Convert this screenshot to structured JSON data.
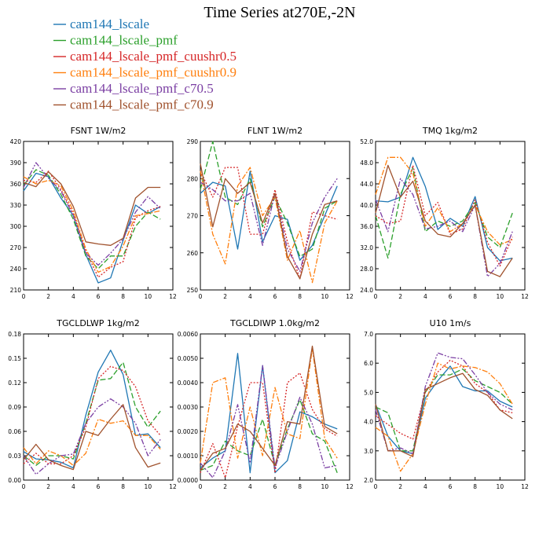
{
  "figure": {
    "title": "Time Series at270E,-2N"
  },
  "legend": [
    {
      "label": "cam144_lscale",
      "color": "#1f77b4",
      "dash": "solid"
    },
    {
      "label": "cam144_lscale_pmf",
      "color": "#2ca02c",
      "dash": "longdash"
    },
    {
      "label": "cam144_lscale_pmf_cuushr0.5",
      "color": "#d62728",
      "dash": "dotted"
    },
    {
      "label": "cam144_lscale_pmf_cuushr0.9",
      "color": "#ff7f0e",
      "dash": "dashdot"
    },
    {
      "label": "cam144_lscale_pmf_c70.5",
      "color": "#7b3fa3",
      "dash": "dashdotdot"
    },
    {
      "label": "cam144_lscale_pmf_c70.9",
      "color": "#a0522d",
      "dash": "solid"
    }
  ],
  "chart_data": [
    {
      "type": "line",
      "title": "FSNT  1W/m2",
      "x": [
        0,
        1,
        2,
        3,
        4,
        5,
        6,
        7,
        8,
        9,
        10,
        11
      ],
      "xlim": [
        0,
        12
      ],
      "xticks": [
        0,
        2,
        4,
        6,
        8,
        10,
        12
      ],
      "ylim": [
        210,
        420
      ],
      "yticks": [
        210,
        240,
        270,
        300,
        330,
        360,
        390,
        420
      ],
      "ytick_labels": [
        "210",
        "240",
        "270",
        "300",
        "330",
        "360",
        "390",
        "420"
      ],
      "series": [
        {
          "name": "cam144_lscale",
          "values": [
            350,
            375,
            370,
            340,
            315,
            260,
            220,
            227,
            280,
            330,
            318,
            328
          ]
        },
        {
          "name": "cam144_lscale_pmf",
          "values": [
            358,
            380,
            372,
            345,
            310,
            258,
            240,
            258,
            258,
            300,
            320,
            310
          ]
        },
        {
          "name": "cam144_lscale_pmf_cuushr0.5",
          "values": [
            365,
            362,
            378,
            352,
            318,
            265,
            228,
            242,
            250,
            312,
            322,
            328
          ]
        },
        {
          "name": "cam144_lscale_pmf_cuushr0.9",
          "values": [
            370,
            360,
            365,
            357,
            322,
            268,
            235,
            243,
            272,
            315,
            318,
            322
          ]
        },
        {
          "name": "cam144_lscale_pmf_c70.5",
          "values": [
            355,
            390,
            368,
            350,
            315,
            262,
            245,
            262,
            282,
            320,
            342,
            325
          ]
        },
        {
          "name": "cam144_lscale_pmf_c70.9",
          "values": [
            362,
            356,
            377,
            360,
            328,
            278,
            275,
            273,
            283,
            340,
            355,
            355
          ]
        }
      ]
    },
    {
      "type": "line",
      "title": "FLNT  1W/m2",
      "x": [
        0,
        1,
        2,
        3,
        4,
        5,
        6,
        7,
        8,
        9,
        10,
        11
      ],
      "xlim": [
        0,
        12
      ],
      "xticks": [
        0,
        2,
        4,
        6,
        8,
        10,
        12
      ],
      "ylim": [
        250,
        290
      ],
      "yticks": [
        250,
        260,
        270,
        280,
        290
      ],
      "ytick_labels": [
        "250",
        "260",
        "270",
        "280",
        "290"
      ],
      "series": [
        {
          "name": "cam144_lscale",
          "values": [
            276,
            279,
            278,
            261,
            282,
            263,
            270,
            269,
            258,
            262,
            270,
            278
          ]
        },
        {
          "name": "cam144_lscale_pmf",
          "values": [
            277,
            290,
            275,
            273,
            280,
            267,
            275,
            268,
            259,
            261,
            272,
            274
          ]
        },
        {
          "name": "cam144_lscale_pmf_cuushr0.5",
          "values": [
            282,
            275,
            283,
            283,
            265,
            265,
            277,
            263,
            253,
            271,
            270,
            269
          ]
        },
        {
          "name": "cam144_lscale_pmf_cuushr0.9",
          "values": [
            282,
            265,
            257,
            278,
            283,
            270,
            275,
            258,
            266,
            252,
            268,
            274
          ]
        },
        {
          "name": "cam144_lscale_pmf_c70.5",
          "values": [
            279,
            277,
            274,
            274,
            276,
            262,
            276,
            261,
            255,
            268,
            275,
            280
          ]
        },
        {
          "name": "cam144_lscale_pmf_c70.9",
          "values": [
            284,
            267,
            280,
            276,
            279,
            268,
            276,
            259,
            253,
            265,
            273,
            274
          ]
        }
      ]
    },
    {
      "type": "line",
      "title": "TMQ  1kg/m2",
      "x": [
        0,
        1,
        2,
        3,
        4,
        5,
        6,
        7,
        8,
        9,
        10,
        11
      ],
      "xlim": [
        0,
        12
      ],
      "xticks": [
        0,
        2,
        4,
        6,
        8,
        10,
        12
      ],
      "ylim": [
        24,
        52
      ],
      "yticks": [
        24,
        28,
        32,
        36,
        40,
        44,
        48,
        52
      ],
      "ytick_labels": [
        "24.0",
        "28.0",
        "32.0",
        "36.0",
        "40.0",
        "44.0",
        "48.0",
        "52.0"
      ],
      "series": [
        {
          "name": "cam144_lscale",
          "values": [
            40.8,
            40.6,
            41.5,
            49.0,
            43.5,
            35.4,
            37.5,
            36.0,
            41.6,
            32.0,
            29.5,
            30.0
          ]
        },
        {
          "name": "cam144_lscale_pmf",
          "values": [
            38.0,
            30.0,
            42.0,
            47.0,
            35.0,
            37.0,
            36.0,
            37.0,
            40.5,
            34.0,
            32.0,
            38.5
          ]
        },
        {
          "name": "cam144_lscale_pmf_cuushr0.5",
          "values": [
            38.0,
            36.5,
            37.0,
            47.5,
            38.0,
            40.5,
            34.5,
            35.5,
            41.0,
            33.0,
            28.5,
            34.0
          ]
        },
        {
          "name": "cam144_lscale_pmf_cuushr0.9",
          "values": [
            42.0,
            49.0,
            49.0,
            46.0,
            36.0,
            39.5,
            35.0,
            36.5,
            40.0,
            35.0,
            32.5,
            33.5
          ]
        },
        {
          "name": "cam144_lscale_pmf_c70.5",
          "values": [
            41.0,
            35.0,
            45.0,
            42.0,
            35.5,
            36.0,
            37.0,
            35.0,
            40.0,
            26.5,
            29.0,
            35.0
          ]
        },
        {
          "name": "cam144_lscale_pmf_c70.9",
          "values": [
            38.5,
            47.5,
            41.5,
            44.5,
            37.0,
            34.5,
            34.0,
            36.5,
            40.0,
            27.5,
            26.5,
            30.0
          ]
        }
      ]
    },
    {
      "type": "line",
      "title": "TGCLDLWP  1kg/m2",
      "x": [
        0,
        1,
        2,
        3,
        4,
        5,
        6,
        7,
        8,
        9,
        10,
        11
      ],
      "xlim": [
        0,
        12
      ],
      "xticks": [
        0,
        2,
        4,
        6,
        8,
        10,
        12
      ],
      "ylim": [
        0,
        0.18
      ],
      "yticks": [
        0,
        0.03,
        0.06,
        0.09,
        0.12,
        0.15,
        0.18
      ],
      "ytick_labels": [
        "0.00",
        "0.03",
        "0.06",
        "0.09",
        "0.12",
        "0.15",
        "0.18"
      ],
      "series": [
        {
          "name": "cam144_lscale",
          "values": [
            0.035,
            0.026,
            0.025,
            0.022,
            0.015,
            0.08,
            0.133,
            0.16,
            0.13,
            0.055,
            0.057,
            0.04
          ]
        },
        {
          "name": "cam144_lscale_pmf",
          "values": [
            0.03,
            0.018,
            0.03,
            0.03,
            0.026,
            0.07,
            0.123,
            0.125,
            0.145,
            0.09,
            0.065,
            0.085
          ]
        },
        {
          "name": "cam144_lscale_pmf_cuushr0.5",
          "values": [
            0.02,
            0.033,
            0.02,
            0.02,
            0.03,
            0.065,
            0.125,
            0.14,
            0.135,
            0.115,
            0.073,
            0.055
          ]
        },
        {
          "name": "cam144_lscale_pmf_cuushr0.9",
          "values": [
            0.04,
            0.02,
            0.036,
            0.03,
            0.018,
            0.033,
            0.075,
            0.07,
            0.073,
            0.055,
            0.055,
            0.038
          ]
        },
        {
          "name": "cam144_lscale_pmf_c70.5",
          "values": [
            0.03,
            0.007,
            0.02,
            0.03,
            0.032,
            0.07,
            0.09,
            0.1,
            0.09,
            0.07,
            0.03,
            0.05
          ]
        },
        {
          "name": "cam144_lscale_pmf_c70.9",
          "values": [
            0.025,
            0.044,
            0.025,
            0.018,
            0.013,
            0.06,
            0.055,
            0.075,
            0.093,
            0.04,
            0.016,
            0.021
          ]
        }
      ]
    },
    {
      "type": "line",
      "title": "TGCLDIWP  1.0kg/m2",
      "x": [
        0,
        1,
        2,
        3,
        4,
        5,
        6,
        7,
        8,
        9,
        10,
        11
      ],
      "xlim": [
        0,
        12
      ],
      "xticks": [
        0,
        2,
        4,
        6,
        8,
        10,
        12
      ],
      "ylim": [
        0,
        0.006
      ],
      "yticks": [
        0,
        0.001,
        0.002,
        0.003,
        0.004,
        0.005,
        0.006
      ],
      "ytick_labels": [
        "0.0000",
        "0.0010",
        "0.0020",
        "0.0030",
        "0.0040",
        "0.0050",
        "0.0060"
      ],
      "series": [
        {
          "name": "cam144_lscale",
          "values": [
            0.0005,
            0.0009,
            0.0012,
            0.0052,
            0.0003,
            0.0047,
            0.0003,
            0.0008,
            0.0028,
            0.0026,
            0.0023,
            0.0021
          ]
        },
        {
          "name": "cam144_lscale_pmf",
          "values": [
            0.0004,
            0.0006,
            0.0016,
            0.0012,
            0.001,
            0.0025,
            0.0006,
            0.0021,
            0.0033,
            0.0019,
            0.0016,
            0.0003
          ]
        },
        {
          "name": "cam144_lscale_pmf_cuushr0.5",
          "values": [
            0.0003,
            0.0015,
            0.0001,
            0.0022,
            0.004,
            0.004,
            0.0003,
            0.004,
            0.0044,
            0.0029,
            0.0021,
            0.0018
          ]
        },
        {
          "name": "cam144_lscale_pmf_cuushr0.9",
          "values": [
            0.0007,
            0.004,
            0.0042,
            0.0009,
            0.003,
            0.001,
            0.0038,
            0.0019,
            0.0017,
            0.0054,
            0.0017,
            0.0009
          ]
        },
        {
          "name": "cam144_lscale_pmf_c70.5",
          "values": [
            0.0007,
            0.0001,
            0.0012,
            0.0031,
            0.0007,
            0.0047,
            0.0005,
            0.002,
            0.0034,
            0.0023,
            0.0005,
            0.0006
          ]
        },
        {
          "name": "cam144_lscale_pmf_c70.9",
          "values": [
            0.0004,
            0.0011,
            0.0013,
            0.0023,
            0.002,
            0.0013,
            0.0006,
            0.0024,
            0.0023,
            0.0055,
            0.0022,
            0.0019
          ]
        }
      ]
    },
    {
      "type": "line",
      "title": "U10  1m/s",
      "x": [
        0,
        1,
        2,
        3,
        4,
        5,
        6,
        7,
        8,
        9,
        10,
        11
      ],
      "xlim": [
        0,
        12
      ],
      "xticks": [
        0,
        2,
        4,
        6,
        8,
        10,
        12
      ],
      "ylim": [
        2,
        7
      ],
      "yticks": [
        2,
        3,
        4,
        5,
        6,
        7
      ],
      "ytick_labels": [
        "2.0",
        "3.0",
        "4.0",
        "5.0",
        "6.0",
        "7.0"
      ],
      "series": [
        {
          "name": "cam144_lscale",
          "values": [
            4.6,
            3.5,
            3.0,
            2.9,
            4.8,
            5.4,
            5.9,
            5.2,
            5.05,
            5.05,
            4.7,
            4.5
          ]
        },
        {
          "name": "cam144_lscale_pmf",
          "values": [
            4.5,
            4.3,
            3.0,
            3.0,
            5.0,
            5.6,
            5.6,
            5.8,
            5.4,
            5.2,
            5.0,
            4.6
          ]
        },
        {
          "name": "cam144_lscale_pmf_cuushr0.5",
          "values": [
            4.2,
            3.9,
            3.6,
            3.4,
            5.0,
            5.7,
            6.1,
            5.9,
            5.3,
            5.0,
            4.4,
            4.3
          ]
        },
        {
          "name": "cam144_lscale_pmf_cuushr0.9",
          "values": [
            3.8,
            3.5,
            2.3,
            2.9,
            4.6,
            6.0,
            5.8,
            5.9,
            5.85,
            5.7,
            5.3,
            4.6
          ]
        },
        {
          "name": "cam144_lscale_pmf_c70.5",
          "values": [
            4.4,
            3.0,
            3.1,
            2.9,
            5.2,
            6.35,
            6.2,
            6.15,
            5.6,
            5.0,
            4.6,
            4.4
          ]
        },
        {
          "name": "cam144_lscale_pmf_c70.9",
          "values": [
            4.6,
            3.0,
            3.0,
            2.8,
            5.1,
            5.3,
            5.5,
            5.65,
            5.1,
            4.9,
            4.4,
            4.1
          ]
        }
      ]
    }
  ]
}
